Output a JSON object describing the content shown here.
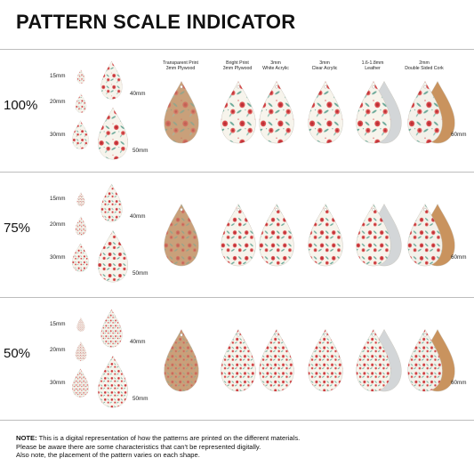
{
  "title": "PATTERN SCALE INDICATOR",
  "sizes": [
    "15mm",
    "20mm",
    "30mm",
    "40mm",
    "50mm"
  ],
  "materials": [
    {
      "label_line1": "Transparent Print",
      "label_line2": "3mm Plywood",
      "color": "#c9a07a"
    },
    {
      "label_line1": "Bright Print",
      "label_line2": "3mm Plywood",
      "color": "#f2efe6"
    },
    {
      "label_line1": "3mm",
      "label_line2": "White Acrylic",
      "color": "#f7f6f1"
    },
    {
      "label_line1": "3mm",
      "label_line2": "Clear Acrylic",
      "color": "#f3f2ec"
    },
    {
      "label_line1": "1.6-1.8mm",
      "label_line2": "Leather",
      "color": "#d7d9db"
    },
    {
      "label_line1": "2mm",
      "label_line2": "Double Sided Cork",
      "color": "#c9935e"
    }
  ],
  "material_size_label": "60mm",
  "rows": [
    {
      "scale": "100%"
    },
    {
      "scale": "75%"
    },
    {
      "scale": "50%"
    }
  ],
  "note": {
    "bold": "NOTE:",
    "line1": " This is a digital representation of how the patterns are printed on the different materials.",
    "line2": "Please be aware there are some characteristics that can't be represented digitally.",
    "line3": "Also note, the placement of the pattern varies on each shape."
  },
  "colors": {
    "rose": "#d9484a",
    "leaf": "#5a9b8c",
    "cream": "#f7f4ec",
    "divider": "#bdbdbd"
  }
}
